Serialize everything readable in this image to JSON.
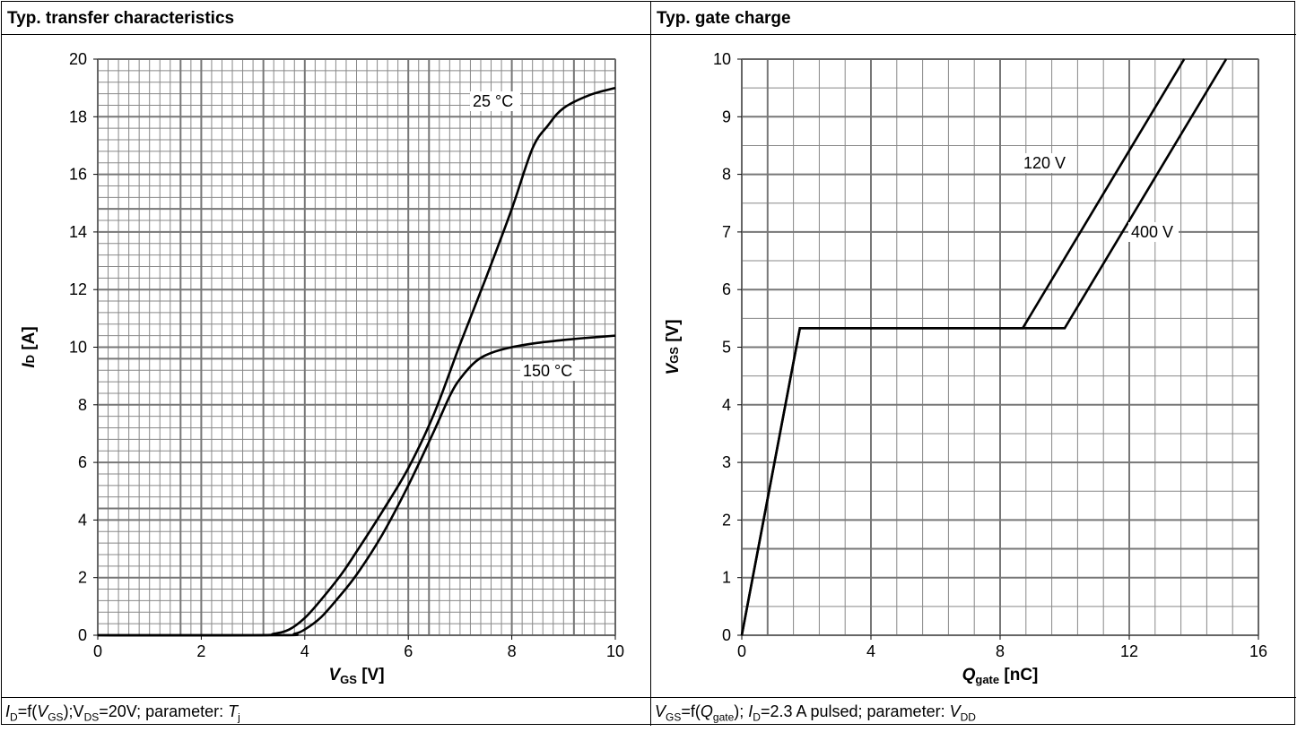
{
  "panels": {
    "left": {
      "title": "Typ. transfer characteristics",
      "caption": {
        "I": "I",
        "Isub": "D",
        "eq": "=f(",
        "V1": "V",
        "V1sub": "GS",
        "rest": ");V",
        "V2sub": "DS",
        "rest2": "=20V; parameter: ",
        "T": "T",
        "Tsub": "j"
      }
    },
    "right": {
      "title": "Typ. gate charge",
      "caption": {
        "V": "V",
        "Vsub": "GS",
        "eq": "=f(",
        "Q": "Q",
        "Qsub": "gate",
        "rest": "); ",
        "I": "I",
        "Isub": "D",
        "rest2": "=2.3 A pulsed; parameter: ",
        "V2": "V",
        "V2sub": "DD"
      }
    }
  },
  "chart_data": [
    {
      "type": "line",
      "title": "Typ. transfer characteristics",
      "xlabel": "VGS [V]",
      "ylabel": "ID [A]",
      "xlim": [
        0,
        10
      ],
      "ylim": [
        0,
        20
      ],
      "xticks": [
        0,
        2,
        4,
        6,
        8,
        10
      ],
      "yticks": [
        0,
        2,
        4,
        6,
        8,
        10,
        12,
        14,
        16,
        18,
        20
      ],
      "grid": true,
      "series": [
        {
          "name": "25 °C",
          "x": [
            0,
            3.0,
            3.4,
            3.7,
            4.0,
            4.3,
            4.7,
            5.0,
            5.5,
            6.0,
            6.5,
            7.0,
            7.5,
            8.0,
            8.4,
            8.7,
            9.0,
            9.5,
            10.0
          ],
          "y": [
            0,
            0,
            0.05,
            0.2,
            0.6,
            1.2,
            2.1,
            2.9,
            4.3,
            5.8,
            7.7,
            10.1,
            12.4,
            14.8,
            16.9,
            17.7,
            18.3,
            18.75,
            19.0
          ]
        },
        {
          "name": "150 °C",
          "x": [
            0,
            3.5,
            3.8,
            4.0,
            4.3,
            4.6,
            5.0,
            5.5,
            6.0,
            6.5,
            6.8,
            7.0,
            7.3,
            7.6,
            8.0,
            8.5,
            9.0,
            9.5,
            10.0
          ],
          "y": [
            0,
            0,
            0.05,
            0.2,
            0.6,
            1.2,
            2.1,
            3.5,
            5.2,
            7.1,
            8.3,
            8.9,
            9.5,
            9.8,
            10.0,
            10.15,
            10.25,
            10.33,
            10.4
          ]
        }
      ],
      "annotations": [
        "25 °C",
        "150 °C"
      ]
    },
    {
      "type": "line",
      "title": "Typ. gate charge",
      "xlabel": "Qgate [nC]",
      "ylabel": "VGS [V]",
      "xlim": [
        0,
        16
      ],
      "ylim": [
        0,
        10
      ],
      "xticks": [
        0,
        4,
        8,
        12,
        16
      ],
      "yticks": [
        0,
        1,
        2,
        3,
        4,
        5,
        6,
        7,
        8,
        9,
        10
      ],
      "grid": true,
      "series": [
        {
          "name": "120 V",
          "x": [
            0,
            1.8,
            8.7,
            13.7
          ],
          "y": [
            0,
            5.33,
            5.33,
            10.0
          ]
        },
        {
          "name": "400 V",
          "x": [
            0,
            1.8,
            10.0,
            15.0
          ],
          "y": [
            0,
            5.33,
            5.33,
            10.0
          ]
        }
      ],
      "annotations": [
        "120 V",
        "400 V"
      ]
    }
  ]
}
